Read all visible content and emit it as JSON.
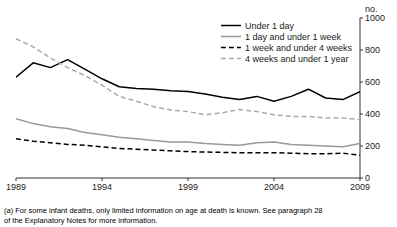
{
  "chart_data": {
    "type": "line",
    "ylabel": "no.",
    "annotations": [
      "(a) For some infant deaths, only limited information on age at death is known. See paragraph 28\nof the Explanatory Notes for more information."
    ],
    "x": [
      1989,
      1990,
      1991,
      1992,
      1993,
      1994,
      1995,
      1996,
      1997,
      1998,
      1999,
      2000,
      2001,
      2002,
      2003,
      2004,
      2005,
      2006,
      2007,
      2008,
      2009
    ],
    "series": [
      {
        "name": "Under 1 day",
        "color": "#000000",
        "line_style": "solid",
        "values": [
          630,
          720,
          690,
          740,
          680,
          620,
          570,
          560,
          555,
          545,
          540,
          525,
          505,
          490,
          510,
          480,
          510,
          555,
          500,
          490,
          540
        ]
      },
      {
        "name": "1 day and under 1 week",
        "color": "#999999",
        "line_style": "solid",
        "values": [
          370,
          340,
          320,
          310,
          285,
          270,
          255,
          245,
          235,
          225,
          225,
          215,
          210,
          205,
          220,
          225,
          210,
          205,
          200,
          195,
          215
        ]
      },
      {
        "name": "1 week and under 4 weeks",
        "color": "#000000",
        "line_style": "dashed",
        "values": [
          245,
          230,
          220,
          210,
          205,
          195,
          185,
          180,
          175,
          170,
          165,
          162,
          160,
          158,
          158,
          158,
          155,
          152,
          152,
          155,
          142
        ]
      },
      {
        "name": "4 weeks and under 1 year",
        "color": "#aaaaaa",
        "line_style": "dashed",
        "values": [
          870,
          820,
          750,
          690,
          640,
          580,
          510,
          480,
          445,
          425,
          415,
          395,
          408,
          428,
          415,
          395,
          385,
          385,
          375,
          375,
          365
        ]
      }
    ],
    "xlim": [
      1989,
      2009
    ],
    "xticks": [
      1989,
      1994,
      1999,
      2004,
      2009
    ],
    "ylim": [
      0,
      1000
    ],
    "yticks": [
      0,
      200,
      400,
      600,
      800,
      1000
    ],
    "grid": false,
    "legend": "upper right"
  }
}
